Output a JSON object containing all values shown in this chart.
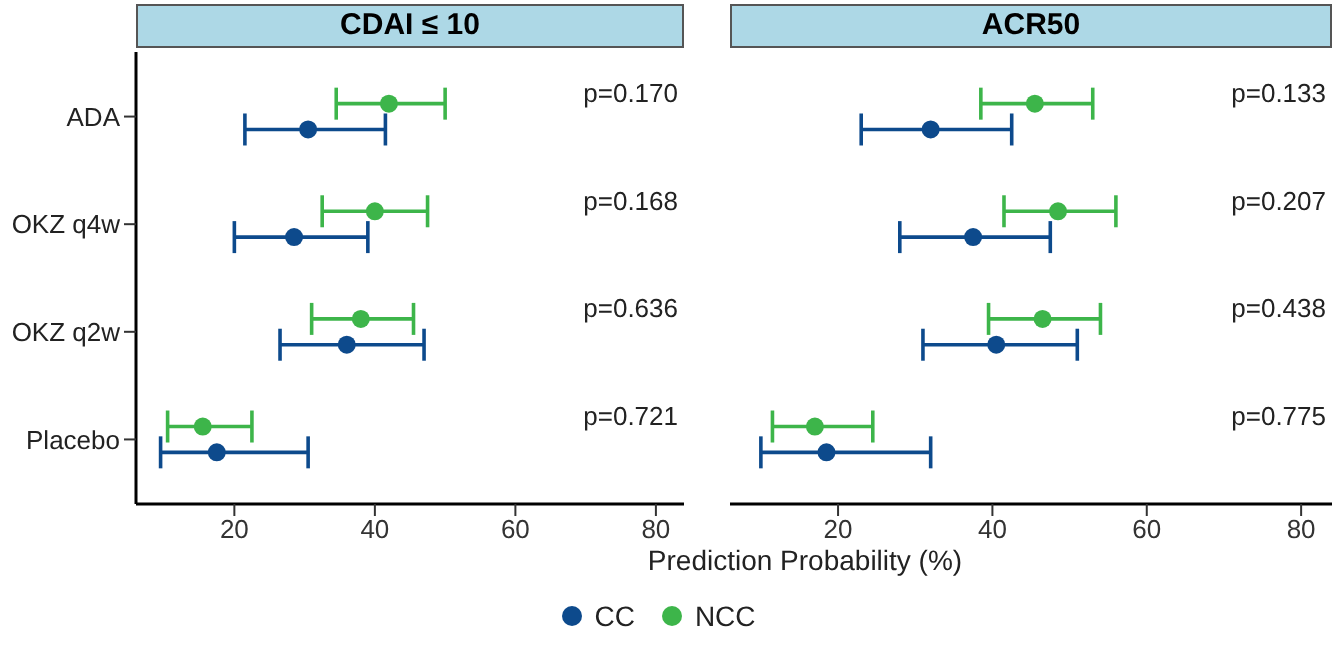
{
  "chart_data": [
    {
      "type": "scatter",
      "title": "CDAI ≤ 10",
      "xlabel": "Prediction Probability (%)",
      "orientation": "horizontal",
      "categories": [
        "ADA",
        "OKZ q4w",
        "OKZ q2w",
        "Placebo"
      ],
      "xlim": [
        6,
        84
      ],
      "xticks": [
        20,
        40,
        60,
        80
      ],
      "marker": "circle",
      "legend": "bottom",
      "series": [
        {
          "name": "CC",
          "color": "#0d4a8c",
          "values": [
            30.5,
            28.5,
            36,
            17.5
          ],
          "errors": [
            [
              21.5,
              41.5
            ],
            [
              20,
              39
            ],
            [
              26.5,
              47
            ],
            [
              9.5,
              30.5
            ]
          ]
        },
        {
          "name": "NCC",
          "color": "#3db54a",
          "values": [
            42,
            40,
            38,
            15.5
          ],
          "errors": [
            [
              34.5,
              50
            ],
            [
              32.5,
              47.5
            ],
            [
              31,
              45.5
            ],
            [
              10.5,
              22.5
            ]
          ]
        }
      ],
      "annotations": [
        "p=0.170",
        "p=0.168",
        "p=0.636",
        "p=0.721"
      ]
    },
    {
      "type": "scatter",
      "title": "ACR50",
      "orientation": "horizontal",
      "categories": [
        null,
        null,
        null,
        null
      ],
      "xlim": [
        6,
        84
      ],
      "xticks": [
        20,
        40,
        60,
        80
      ],
      "marker": "circle",
      "tick_labels": "x",
      "series": [
        {
          "color": "#0d4a8c",
          "values": [
            32,
            37.5,
            40.5,
            18.5
          ],
          "errors": [
            [
              23,
              42.5
            ],
            [
              28,
              47.5
            ],
            [
              31,
              51
            ],
            [
              10,
              32
            ]
          ]
        },
        {
          "color": "#3db54a",
          "values": [
            45.5,
            48.5,
            46.5,
            17
          ],
          "errors": [
            [
              38.5,
              53
            ],
            [
              41.5,
              56
            ],
            [
              39.5,
              54
            ],
            [
              11.5,
              24.5
            ]
          ]
        }
      ],
      "annotations": [
        "p=0.133",
        "p=0.207",
        "p=0.438",
        "p=0.775"
      ]
    }
  ]
}
